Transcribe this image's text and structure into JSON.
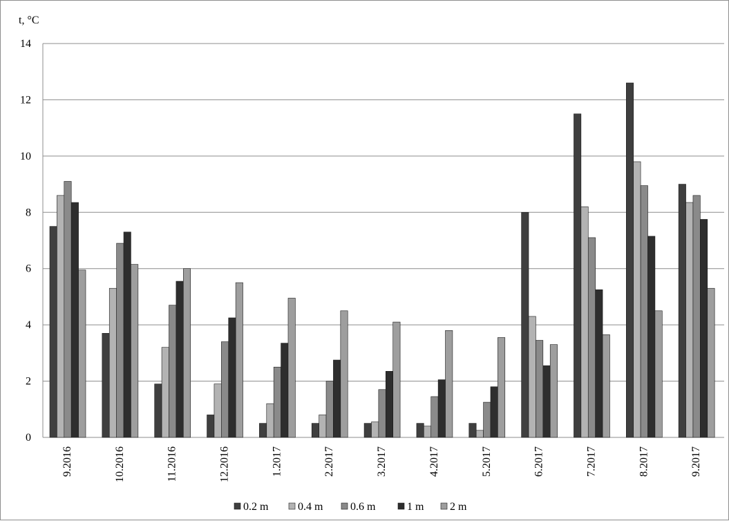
{
  "chart_data": {
    "type": "bar",
    "ylabel": "t, °C",
    "ylim": [
      0,
      14
    ],
    "yticks": [
      0,
      2,
      4,
      6,
      8,
      10,
      12,
      14
    ],
    "grid": true,
    "legend_position": "bottom",
    "categories": [
      "9.2016",
      "10.2016",
      "11.2016",
      "12.2016",
      "1.2017",
      "2.2017",
      "3.2017",
      "4.2017",
      "5.2017",
      "6.2017",
      "7.2017",
      "8.2017",
      "9.2017"
    ],
    "series": [
      {
        "name": "0.2 m",
        "color": "#3f3f3f",
        "values": [
          7.5,
          3.7,
          1.9,
          0.8,
          0.5,
          0.5,
          0.5,
          0.5,
          0.5,
          8.0,
          11.5,
          12.6,
          9.0
        ]
      },
      {
        "name": "0.4 m",
        "color": "#b3b3b3",
        "values": [
          8.6,
          5.3,
          3.2,
          1.9,
          1.2,
          0.8,
          0.55,
          0.4,
          0.25,
          4.3,
          8.2,
          9.8,
          8.35
        ]
      },
      {
        "name": "0.6 m",
        "color": "#8a8a8a",
        "values": [
          9.1,
          6.9,
          4.7,
          3.4,
          2.5,
          2.0,
          1.7,
          1.45,
          1.25,
          3.45,
          7.1,
          8.95,
          8.6
        ]
      },
      {
        "name": "1 m",
        "color": "#2e2e2e",
        "values": [
          8.35,
          7.3,
          5.55,
          4.25,
          3.35,
          2.75,
          2.35,
          2.05,
          1.8,
          2.55,
          5.25,
          7.15,
          7.75
        ]
      },
      {
        "name": "2 m",
        "color": "#9e9e9e",
        "values": [
          5.95,
          6.15,
          6.0,
          5.5,
          4.95,
          4.5,
          4.1,
          3.8,
          3.55,
          3.3,
          3.65,
          4.5,
          5.3
        ]
      }
    ]
  }
}
